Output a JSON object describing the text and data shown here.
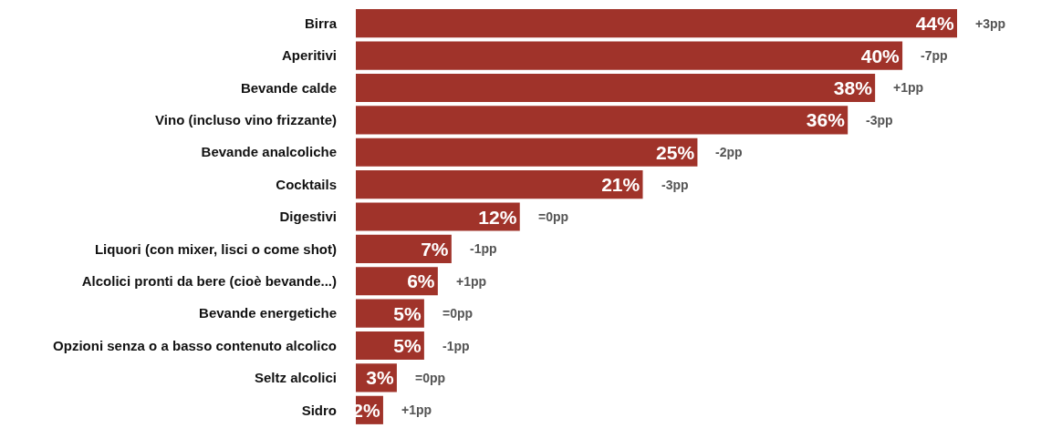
{
  "chart_data": {
    "type": "bar",
    "orientation": "horizontal",
    "categories": [
      "Birra",
      "Aperitivi",
      "Bevande calde",
      "Vino (incluso vino frizzante)",
      "Bevande analcoliche",
      "Cocktails",
      "Digestivi",
      "Liquori (con mixer, lisci o come shot)",
      "Alcolici pronti da bere (cioè bevande...)",
      "Bevande energetiche",
      "Opzioni senza o a basso contenuto alcolico",
      "Seltz alcolici",
      "Sidro"
    ],
    "values": [
      44,
      40,
      38,
      36,
      25,
      21,
      12,
      7,
      6,
      5,
      5,
      3,
      2
    ],
    "color": "#a0332a",
    "value_labels": [
      "44%",
      "40%",
      "38%",
      "36%",
      "25%",
      "21%",
      "12%",
      "7%",
      "6%",
      "5%",
      "5%",
      "3%",
      "2%"
    ],
    "tick_labels": "y",
    "annotations": [
      {
        "text": "+3pp",
        "x": 44,
        "y": "Birra"
      },
      {
        "text": "-7pp",
        "x": 40,
        "y": "Aperitivi"
      },
      {
        "text": "+1pp",
        "x": 38,
        "y": "Bevande calde"
      },
      {
        "text": "-3pp",
        "x": 36,
        "y": "Vino (incluso vino frizzante)"
      },
      {
        "text": "-2pp",
        "x": 25,
        "y": "Bevande analcoliche"
      },
      {
        "text": "-3pp",
        "x": 21,
        "y": "Cocktails"
      },
      {
        "text": "=0pp",
        "x": 12,
        "y": "Digestivi"
      },
      {
        "text": "-1pp",
        "x": 7,
        "y": "Liquori (con mixer, lisci o come shot)"
      },
      {
        "text": "+1pp",
        "x": 6,
        "y": "Alcolici pronti da bere (cioè bevande...)"
      },
      {
        "text": "=0pp",
        "x": 5,
        "y": "Bevande energetiche"
      },
      {
        "text": "-1pp",
        "x": 5,
        "y": "Opzioni senza o a basso contenuto alcolico"
      },
      {
        "text": "=0pp",
        "x": 3,
        "y": "Seltz alcolici"
      },
      {
        "text": "+1pp",
        "x": 2,
        "y": "Sidro"
      }
    ]
  }
}
